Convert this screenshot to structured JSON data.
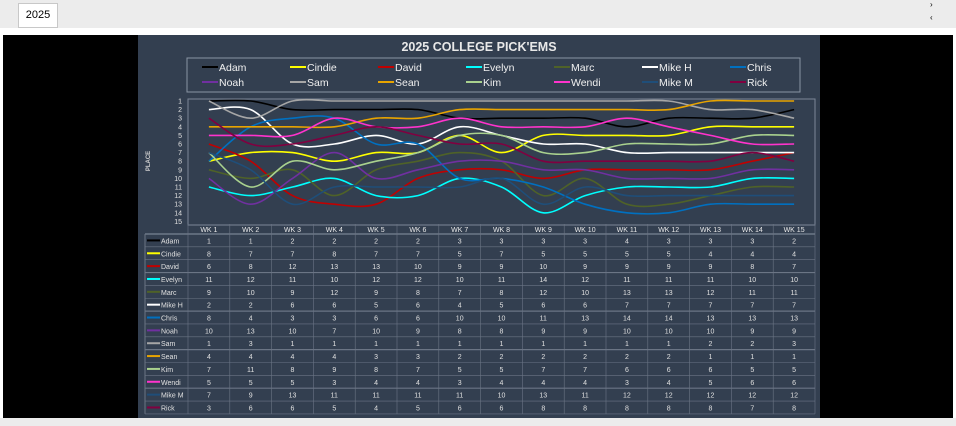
{
  "sheet_tab": "2025",
  "scroll": {
    "right": "›",
    "left": "‹"
  },
  "chart_data": {
    "type": "line",
    "title": "2025 COLLEGE PICK'EMS",
    "ylabel": "PLACE",
    "ylim": [
      1,
      15
    ],
    "y_inverted": true,
    "yticks": [
      "1",
      "2",
      "3",
      "4",
      "5",
      "6",
      "7",
      "8",
      "9",
      "10",
      "11",
      "12",
      "13",
      "14",
      "15"
    ],
    "legend_placement": "top",
    "categories": [
      "WK 1",
      "WK 2",
      "WK 3",
      "WK 4",
      "WK 5",
      "WK 6",
      "WK 7",
      "WK 8",
      "WK 9",
      "WK 10",
      "WK 11",
      "WK 12",
      "WK 13",
      "WK 14",
      "WK 15"
    ],
    "series": [
      {
        "name": "Adam",
        "color": "#000000",
        "values": [
          1,
          1,
          2,
          2,
          2,
          2,
          3,
          3,
          3,
          3,
          4,
          3,
          3,
          3,
          2
        ]
      },
      {
        "name": "Cindie",
        "color": "#ffff00",
        "values": [
          8,
          7,
          7,
          8,
          7,
          7,
          5,
          7,
          5,
          5,
          5,
          5,
          4,
          4,
          4
        ]
      },
      {
        "name": "David",
        "color": "#c00000",
        "values": [
          6,
          8,
          12,
          13,
          13,
          10,
          9,
          9,
          10,
          9,
          9,
          9,
          9,
          8,
          7
        ]
      },
      {
        "name": "Evelyn",
        "color": "#00ffff",
        "values": [
          11,
          12,
          11,
          10,
          12,
          12,
          10,
          11,
          14,
          12,
          11,
          11,
          11,
          10,
          10
        ]
      },
      {
        "name": "Marc",
        "color": "#4f6228",
        "values": [
          9,
          10,
          9,
          12,
          9,
          8,
          7,
          8,
          12,
          10,
          13,
          13,
          12,
          11,
          11
        ]
      },
      {
        "name": "Mike H",
        "color": "#ffffff",
        "values": [
          2,
          2,
          6,
          6,
          5,
          6,
          4,
          5,
          6,
          6,
          7,
          7,
          7,
          7,
          7
        ]
      },
      {
        "name": "Chris",
        "color": "#0070c0",
        "values": [
          8,
          4,
          3,
          3,
          6,
          6,
          10,
          10,
          11,
          13,
          14,
          14,
          13,
          13,
          13
        ]
      },
      {
        "name": "Noah",
        "color": "#7030a0",
        "values": [
          10,
          13,
          10,
          7,
          10,
          9,
          8,
          8,
          9,
          9,
          10,
          10,
          10,
          9,
          9
        ]
      },
      {
        "name": "Sam",
        "color": "#a6a6a6",
        "values": [
          1,
          3,
          1,
          1,
          1,
          1,
          1,
          1,
          1,
          1,
          1,
          1,
          2,
          2,
          3
        ]
      },
      {
        "name": "Sean",
        "color": "#e8a400",
        "values": [
          4,
          4,
          4,
          4,
          3,
          3,
          2,
          2,
          2,
          2,
          2,
          2,
          1,
          1,
          1
        ]
      },
      {
        "name": "Kim",
        "color": "#a9d18e",
        "values": [
          7,
          11,
          8,
          9,
          8,
          7,
          5,
          5,
          7,
          7,
          6,
          6,
          6,
          5,
          5
        ]
      },
      {
        "name": "Wendi",
        "color": "#ff33cc",
        "values": [
          5,
          5,
          5,
          3,
          4,
          4,
          3,
          4,
          4,
          4,
          3,
          4,
          5,
          6,
          6
        ]
      },
      {
        "name": "Mike M",
        "color": "#1f4e79",
        "values": [
          7,
          9,
          13,
          11,
          11,
          11,
          11,
          10,
          13,
          11,
          12,
          12,
          12,
          12,
          12
        ]
      },
      {
        "name": "Rick",
        "color": "#800040",
        "values": [
          3,
          6,
          6,
          5,
          4,
          5,
          6,
          6,
          8,
          8,
          8,
          8,
          8,
          7,
          8
        ]
      }
    ]
  }
}
